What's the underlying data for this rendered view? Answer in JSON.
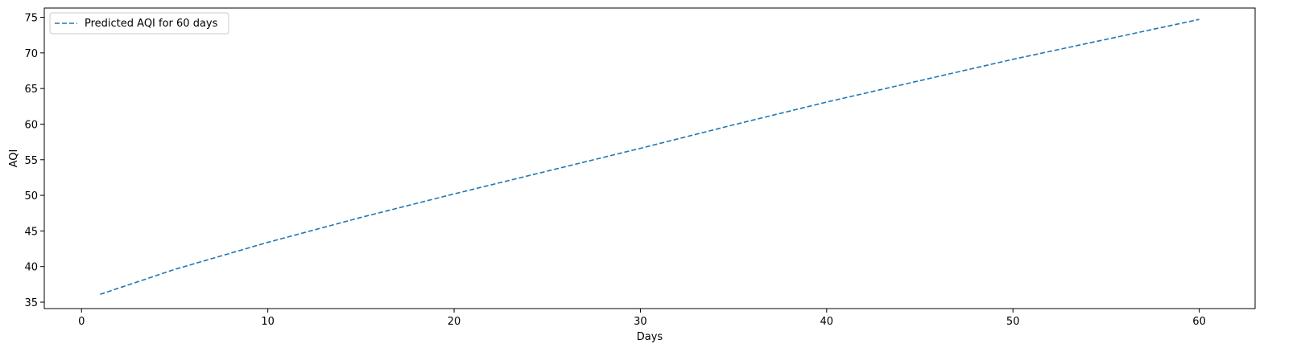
{
  "chart_data": {
    "type": "line",
    "title": "",
    "xlabel": "Days",
    "ylabel": "AQI",
    "xlim": [
      -2.0,
      63.0
    ],
    "ylim": [
      34.1,
      76.3
    ],
    "xticks": [
      0,
      10,
      20,
      30,
      40,
      50,
      60
    ],
    "yticks": [
      35,
      40,
      45,
      50,
      55,
      60,
      65,
      70,
      75
    ],
    "grid": false,
    "legend_position": "upper left",
    "series": [
      {
        "name": "Predicted AQI for 60 days",
        "color": "#1f77b4",
        "linestyle": "dashed",
        "x": [
          1,
          5,
          10,
          15,
          20,
          25,
          30,
          35,
          40,
          45,
          50,
          55,
          60
        ],
        "y": [
          36.1,
          39.6,
          43.4,
          46.9,
          50.2,
          53.4,
          56.6,
          59.9,
          63.1,
          66.1,
          69.1,
          71.9,
          74.7
        ]
      }
    ]
  }
}
